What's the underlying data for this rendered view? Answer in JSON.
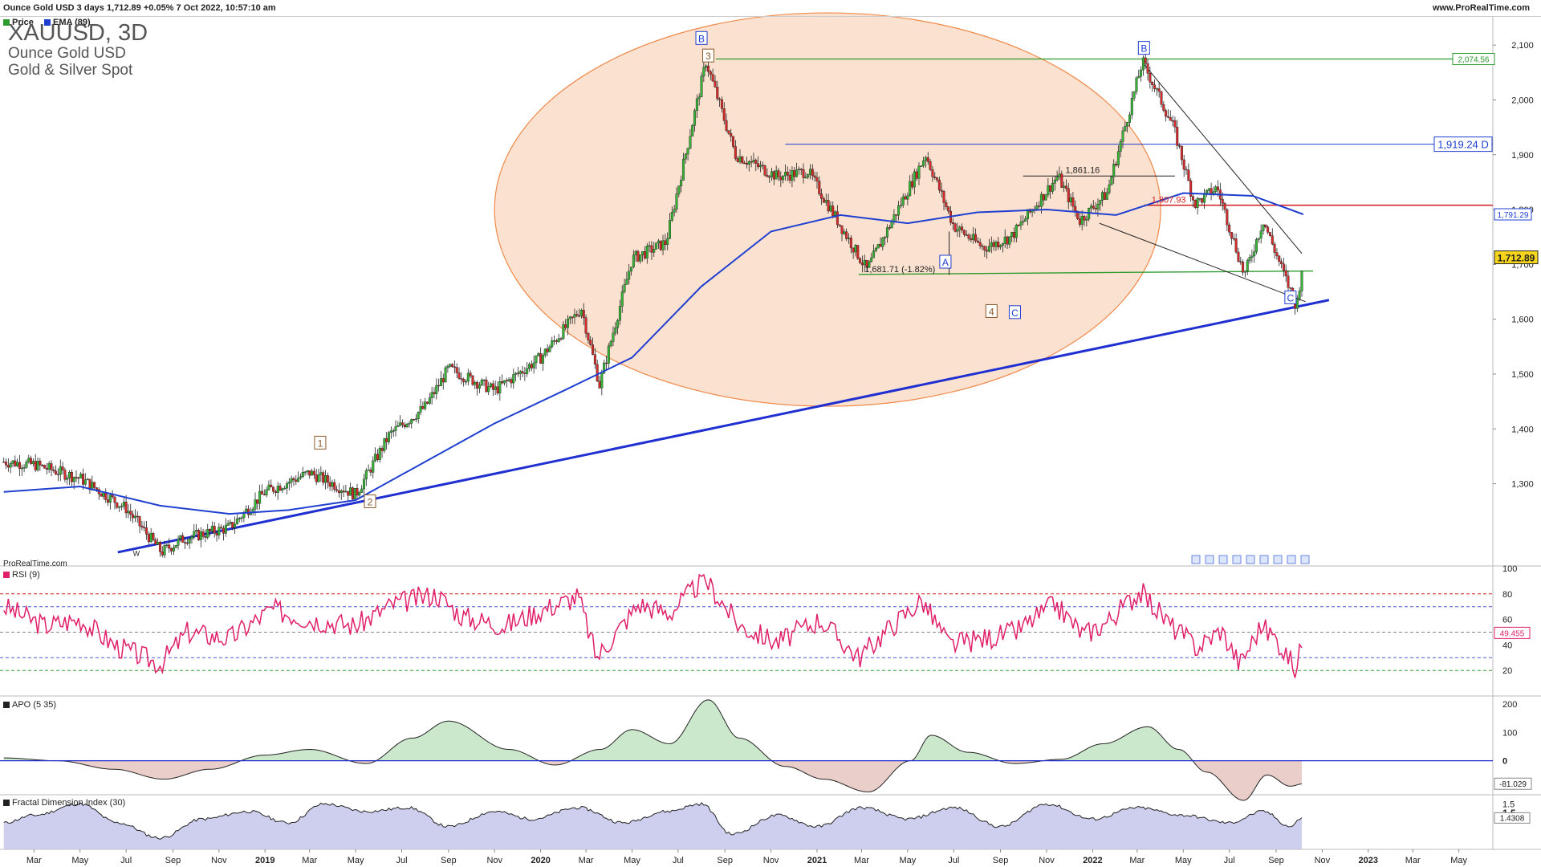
{
  "header": {
    "title": "Ounce Gold USD 3 days 1,712.89 +0.05% 7 Oct 2022, 10:57:10 am",
    "site": "www.ProRealTime.com"
  },
  "legend": {
    "price_label": "Price",
    "ema_label": "EMA (89)",
    "price_color": "#2e9b2e",
    "ema_color": "#1f3fd1"
  },
  "instrument": {
    "symbol": "XAUUSD, 3D",
    "name": "Ounce Gold USD",
    "category": "Gold & Silver Spot"
  },
  "watermark": "ProRealTime.com",
  "chart_data": [
    {
      "type": "line",
      "panel": "price",
      "x": [
        "2018-01-20",
        "2018-03-01",
        "2018-05-01",
        "2018-07-01",
        "2018-08-17",
        "2018-09-15",
        "2018-11-15",
        "2019-01-01",
        "2019-03-01",
        "2019-05-01",
        "2019-06-15",
        "2019-08-01",
        "2019-09-01",
        "2019-11-01",
        "2020-01-01",
        "2020-02-24",
        "2020-03-19",
        "2020-05-01",
        "2020-06-15",
        "2020-08-07",
        "2020-09-15",
        "2020-11-10",
        "2020-12-20",
        "2021-03-08",
        "2021-05-25",
        "2021-07-01",
        "2021-08-10",
        "2021-09-15",
        "2021-11-16",
        "2021-12-15",
        "2022-01-20",
        "2022-03-08",
        "2022-04-18",
        "2022-05-16",
        "2022-06-15",
        "2022-07-21",
        "2022-08-15",
        "2022-09-28",
        "2022-10-07"
      ],
      "y": [
        1340,
        1335,
        1310,
        1255,
        1175,
        1200,
        1220,
        1285,
        1320,
        1280,
        1390,
        1440,
        1510,
        1470,
        1530,
        1620,
        1480,
        1710,
        1740,
        2070,
        1900,
        1860,
        1870,
        1690,
        1900,
        1770,
        1730,
        1750,
        1861,
        1780,
        1830,
        2070,
        1950,
        1810,
        1840,
        1680,
        1780,
        1622,
        1712.89
      ],
      "series": [
        {
          "name": "Price"
        }
      ],
      "ylim": [
        1150,
        2150
      ],
      "yticks": [
        "1,300",
        "1,400",
        "1,500",
        "1,600",
        "1,700",
        "1,800",
        "1,900",
        "2,000",
        "2,100"
      ],
      "yticks_values": [
        1300,
        1400,
        1500,
        1600,
        1700,
        1800,
        1900,
        2000,
        2100
      ],
      "xticks": [
        "Mar",
        "May",
        "Jul",
        "Sep",
        "Nov",
        "2019",
        "Mar",
        "May",
        "Jul",
        "Sep",
        "Nov",
        "2020",
        "Mar",
        "May",
        "Jul",
        "Sep",
        "Nov",
        "2021",
        "Mar",
        "May",
        "Jul",
        "Sep",
        "Nov",
        "2022",
        "Mar",
        "May",
        "Jul",
        "Sep",
        "Nov",
        "2023",
        "Mar",
        "May"
      ],
      "ema": {
        "name": "EMA (89)",
        "x": [
          "2018-01-20",
          "2018-05-01",
          "2018-08-15",
          "2018-11-15",
          "2019-02-01",
          "2019-05-01",
          "2019-08-01",
          "2019-11-01",
          "2020-02-01",
          "2020-05-01",
          "2020-08-01",
          "2020-11-01",
          "2021-02-01",
          "2021-05-01",
          "2021-08-01",
          "2021-11-01",
          "2022-02-01",
          "2022-05-01",
          "2022-08-01",
          "2022-10-07"
        ],
        "y": [
          1285,
          1295,
          1260,
          1245,
          1252,
          1270,
          1340,
          1410,
          1470,
          1530,
          1660,
          1760,
          1790,
          1775,
          1795,
          1800,
          1790,
          1830,
          1825,
          1791.29
        ]
      },
      "annotations": {
        "price_last": "1,712.89",
        "ema_last": "1,791.29",
        "top_level": "2,074.56",
        "level_d": "1,919.24 D",
        "red_level": "1,807.93",
        "high_label": "1,861.16",
        "low_label": "1,681.71 (-1.82%)",
        "wave_labels": [
          "B",
          "3",
          "B",
          "A",
          "4",
          "C",
          "C",
          "1",
          "2",
          "W"
        ]
      }
    },
    {
      "type": "line",
      "panel": "rsi",
      "title": "RSI (9)",
      "ylim": [
        0,
        100
      ],
      "yticks": [
        "20",
        "40",
        "60",
        "80",
        "100"
      ],
      "yticks_values": [
        20,
        40,
        60,
        80,
        100
      ],
      "levels": [
        80,
        70,
        50,
        30,
        20
      ],
      "last": "49.455",
      "x": [
        "2018-01-20",
        "2018-03-15",
        "2018-05-01",
        "2018-06-15",
        "2018-08-15",
        "2018-09-20",
        "2018-11-15",
        "2019-01-10",
        "2019-03-01",
        "2019-05-01",
        "2019-06-20",
        "2019-08-15",
        "2019-09-20",
        "2019-11-15",
        "2020-01-05",
        "2020-02-20",
        "2020-03-15",
        "2020-05-10",
        "2020-06-20",
        "2020-08-05",
        "2020-09-20",
        "2020-11-10",
        "2021-01-05",
        "2021-02-25",
        "2021-04-10",
        "2021-05-20",
        "2021-06-25",
        "2021-08-10",
        "2021-09-20",
        "2021-11-12",
        "2021-12-20",
        "2022-01-20",
        "2022-03-05",
        "2022-04-15",
        "2022-05-20",
        "2022-06-20",
        "2022-07-15",
        "2022-08-12",
        "2022-09-01",
        "2022-09-28",
        "2022-10-07"
      ],
      "y": [
        70,
        55,
        60,
        40,
        25,
        50,
        45,
        68,
        60,
        55,
        72,
        80,
        62,
        55,
        68,
        78,
        30,
        72,
        65,
        92,
        55,
        42,
        60,
        30,
        55,
        75,
        40,
        45,
        50,
        72,
        48,
        58,
        82,
        55,
        38,
        52,
        25,
        55,
        45,
        20,
        49.455
      ]
    },
    {
      "type": "area",
      "panel": "apo",
      "title": "APO (5 35)",
      "ylim": [
        -120,
        220
      ],
      "yticks": [
        "0",
        "100",
        "200"
      ],
      "yticks_values": [
        0,
        100,
        200
      ],
      "last": "-81.029",
      "x": [
        "2018-01-20",
        "2018-04-01",
        "2018-06-15",
        "2018-08-20",
        "2018-10-20",
        "2019-01-01",
        "2019-03-01",
        "2019-05-15",
        "2019-07-15",
        "2019-09-01",
        "2019-11-20",
        "2020-01-20",
        "2020-03-20",
        "2020-05-01",
        "2020-06-20",
        "2020-08-10",
        "2020-09-20",
        "2020-11-20",
        "2021-01-10",
        "2021-03-10",
        "2021-05-05",
        "2021-06-01",
        "2021-07-20",
        "2021-09-20",
        "2021-11-20",
        "2022-01-15",
        "2022-03-15",
        "2022-04-25",
        "2022-06-01",
        "2022-07-20",
        "2022-08-20",
        "2022-09-20",
        "2022-10-07"
      ],
      "y": [
        10,
        0,
        -30,
        -65,
        -30,
        20,
        40,
        -10,
        80,
        140,
        40,
        -15,
        40,
        110,
        60,
        215,
        80,
        -20,
        -65,
        -110,
        0,
        90,
        30,
        -10,
        5,
        60,
        120,
        40,
        -40,
        -140,
        -50,
        -90,
        -81.029
      ]
    },
    {
      "type": "area",
      "panel": "fdi",
      "title": "Fractal Dimension Index (30)",
      "ylim": [
        1.0,
        1.7
      ],
      "yticks": [
        "1.5",
        "1.5"
      ],
      "yticks_values": [
        1.5,
        1.5
      ],
      "last": "1.4308",
      "x": [
        "2018-01-20",
        "2018-03-01",
        "2018-05-01",
        "2018-06-20",
        "2018-08-15",
        "2018-10-10",
        "2018-12-10",
        "2019-02-01",
        "2019-03-20",
        "2019-05-15",
        "2019-07-10",
        "2019-09-01",
        "2019-11-01",
        "2019-12-20",
        "2020-02-20",
        "2020-04-20",
        "2020-06-15",
        "2020-08-01",
        "2020-09-10",
        "2020-11-10",
        "2021-01-01",
        "2021-03-01",
        "2021-05-01",
        "2021-07-01",
        "2021-09-01",
        "2021-11-01",
        "2022-01-01",
        "2022-03-01",
        "2022-05-01",
        "2022-07-01",
        "2022-08-15",
        "2022-09-20",
        "2022-10-07"
      ],
      "y": [
        1.35,
        1.45,
        1.6,
        1.35,
        1.15,
        1.4,
        1.5,
        1.35,
        1.6,
        1.5,
        1.55,
        1.3,
        1.5,
        1.4,
        1.55,
        1.35,
        1.5,
        1.6,
        1.2,
        1.45,
        1.3,
        1.55,
        1.4,
        1.55,
        1.3,
        1.6,
        1.4,
        1.55,
        1.45,
        1.35,
        1.5,
        1.3,
        1.4308
      ]
    }
  ]
}
